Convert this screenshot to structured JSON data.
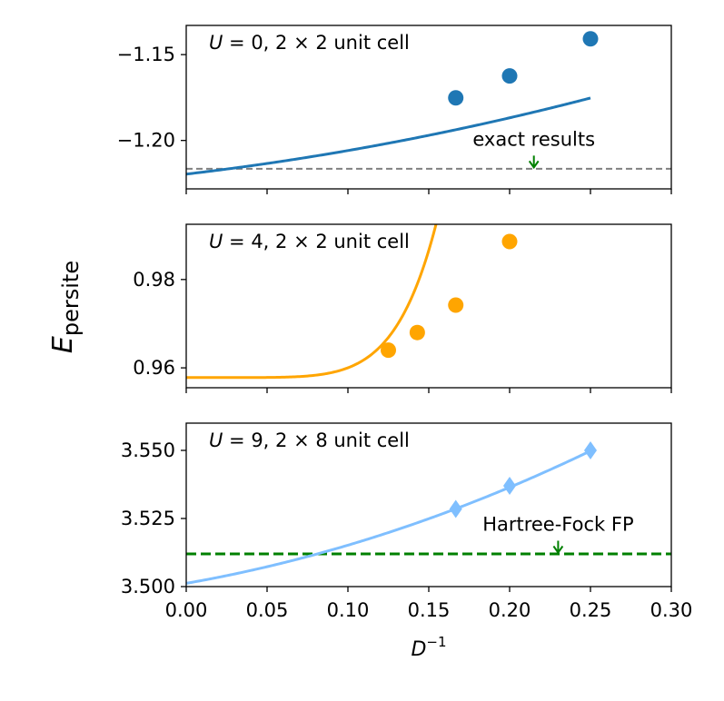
{
  "figure": {
    "ylabel_main": "E",
    "ylabel_sub": "persite",
    "xlabel_main": "D",
    "xlabel_sup": "−1",
    "x_ticks": [
      "0.00",
      "0.05",
      "0.10",
      "0.15",
      "0.20",
      "0.25",
      "0.30"
    ]
  },
  "chart_data": [
    {
      "type": "line",
      "title": "U = 0, 2 × 2 unit cell",
      "title_parts": {
        "U": "U",
        "rest": " = 0, 2 × 2 unit cell"
      },
      "color": "#1f77b4",
      "marker": "circle",
      "xlim": [
        0.0,
        0.3
      ],
      "ylim": [
        -1.2282,
        -1.133
      ],
      "y_ticks": [
        -1.15,
        -1.2
      ],
      "y_tick_labels": [
        "−1.15",
        "−1.20"
      ],
      "points": {
        "x": [
          0.1667,
          0.2,
          0.25
        ],
        "y": [
          -1.1752,
          -1.1624,
          -1.1408
        ]
      },
      "fit": {
        "form": "quadratic",
        "a": -1.2196,
        "b": 0.1104,
        "c": 0.2676
      },
      "reference_line": {
        "y": -1.2165,
        "color": "#808080",
        "style": "dashed"
      },
      "annotation": {
        "text": "exact results",
        "arrow_x": 0.215,
        "color": "#008000"
      }
    },
    {
      "type": "line",
      "title": "U = 4, 2 × 2 unit cell",
      "title_parts": {
        "U": "U",
        "rest": " = 4, 2 × 2 unit cell"
      },
      "color": "#ffa500",
      "marker": "circle",
      "xlim": [
        0.0,
        0.3
      ],
      "ylim": [
        0.9555,
        0.9925
      ],
      "y_ticks": [
        0.98,
        0.96
      ],
      "y_tick_labels": [
        "0.98",
        "0.96"
      ],
      "points": {
        "x": [
          0.125,
          0.1429,
          0.1667,
          0.2
        ],
        "y": [
          0.964,
          0.968,
          0.9742,
          0.9886
        ]
      },
      "fit": {
        "form": "power",
        "a": 0.9578,
        "k": 4727,
        "p": 6.33
      }
    },
    {
      "type": "line",
      "title": "U = 9, 2 × 8 unit cell",
      "title_parts": {
        "U": "U",
        "rest": " = 9, 2 × 8 unit cell"
      },
      "color": "#7fbfff",
      "marker": "diamond",
      "xlim": [
        0.0,
        0.3
      ],
      "ylim": [
        3.5,
        3.56
      ],
      "y_ticks": [
        3.55,
        3.525,
        3.5
      ],
      "y_tick_labels": [
        "3.550",
        "3.525",
        "3.500"
      ],
      "points": {
        "x": [
          0.1667,
          0.2,
          0.25
        ],
        "y": [
          3.5285,
          3.537,
          3.55
        ]
      },
      "fit": {
        "form": "quadratic",
        "a": 3.5012,
        "b": 0.1036,
        "c": 0.3632
      },
      "reference_line": {
        "y": 3.512,
        "color": "#008000",
        "style": "dashed"
      },
      "annotation": {
        "text": "Hartree-Fock FP",
        "arrow_x": 0.23,
        "color": "#008000"
      }
    }
  ]
}
